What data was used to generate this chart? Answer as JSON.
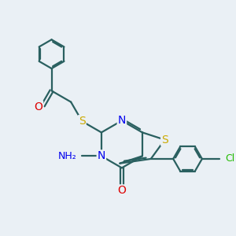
{
  "bg_color": "#eaf0f5",
  "bond_color": "#2a6060",
  "bond_width": 1.6,
  "atom_colors": {
    "N": "#0000ee",
    "S": "#ccaa00",
    "O": "#dd0000",
    "Cl": "#22bb00",
    "C": "#2a6060",
    "H": "#888888"
  },
  "font_size": 9,
  "figsize": [
    3.0,
    3.0
  ],
  "dpi": 100
}
